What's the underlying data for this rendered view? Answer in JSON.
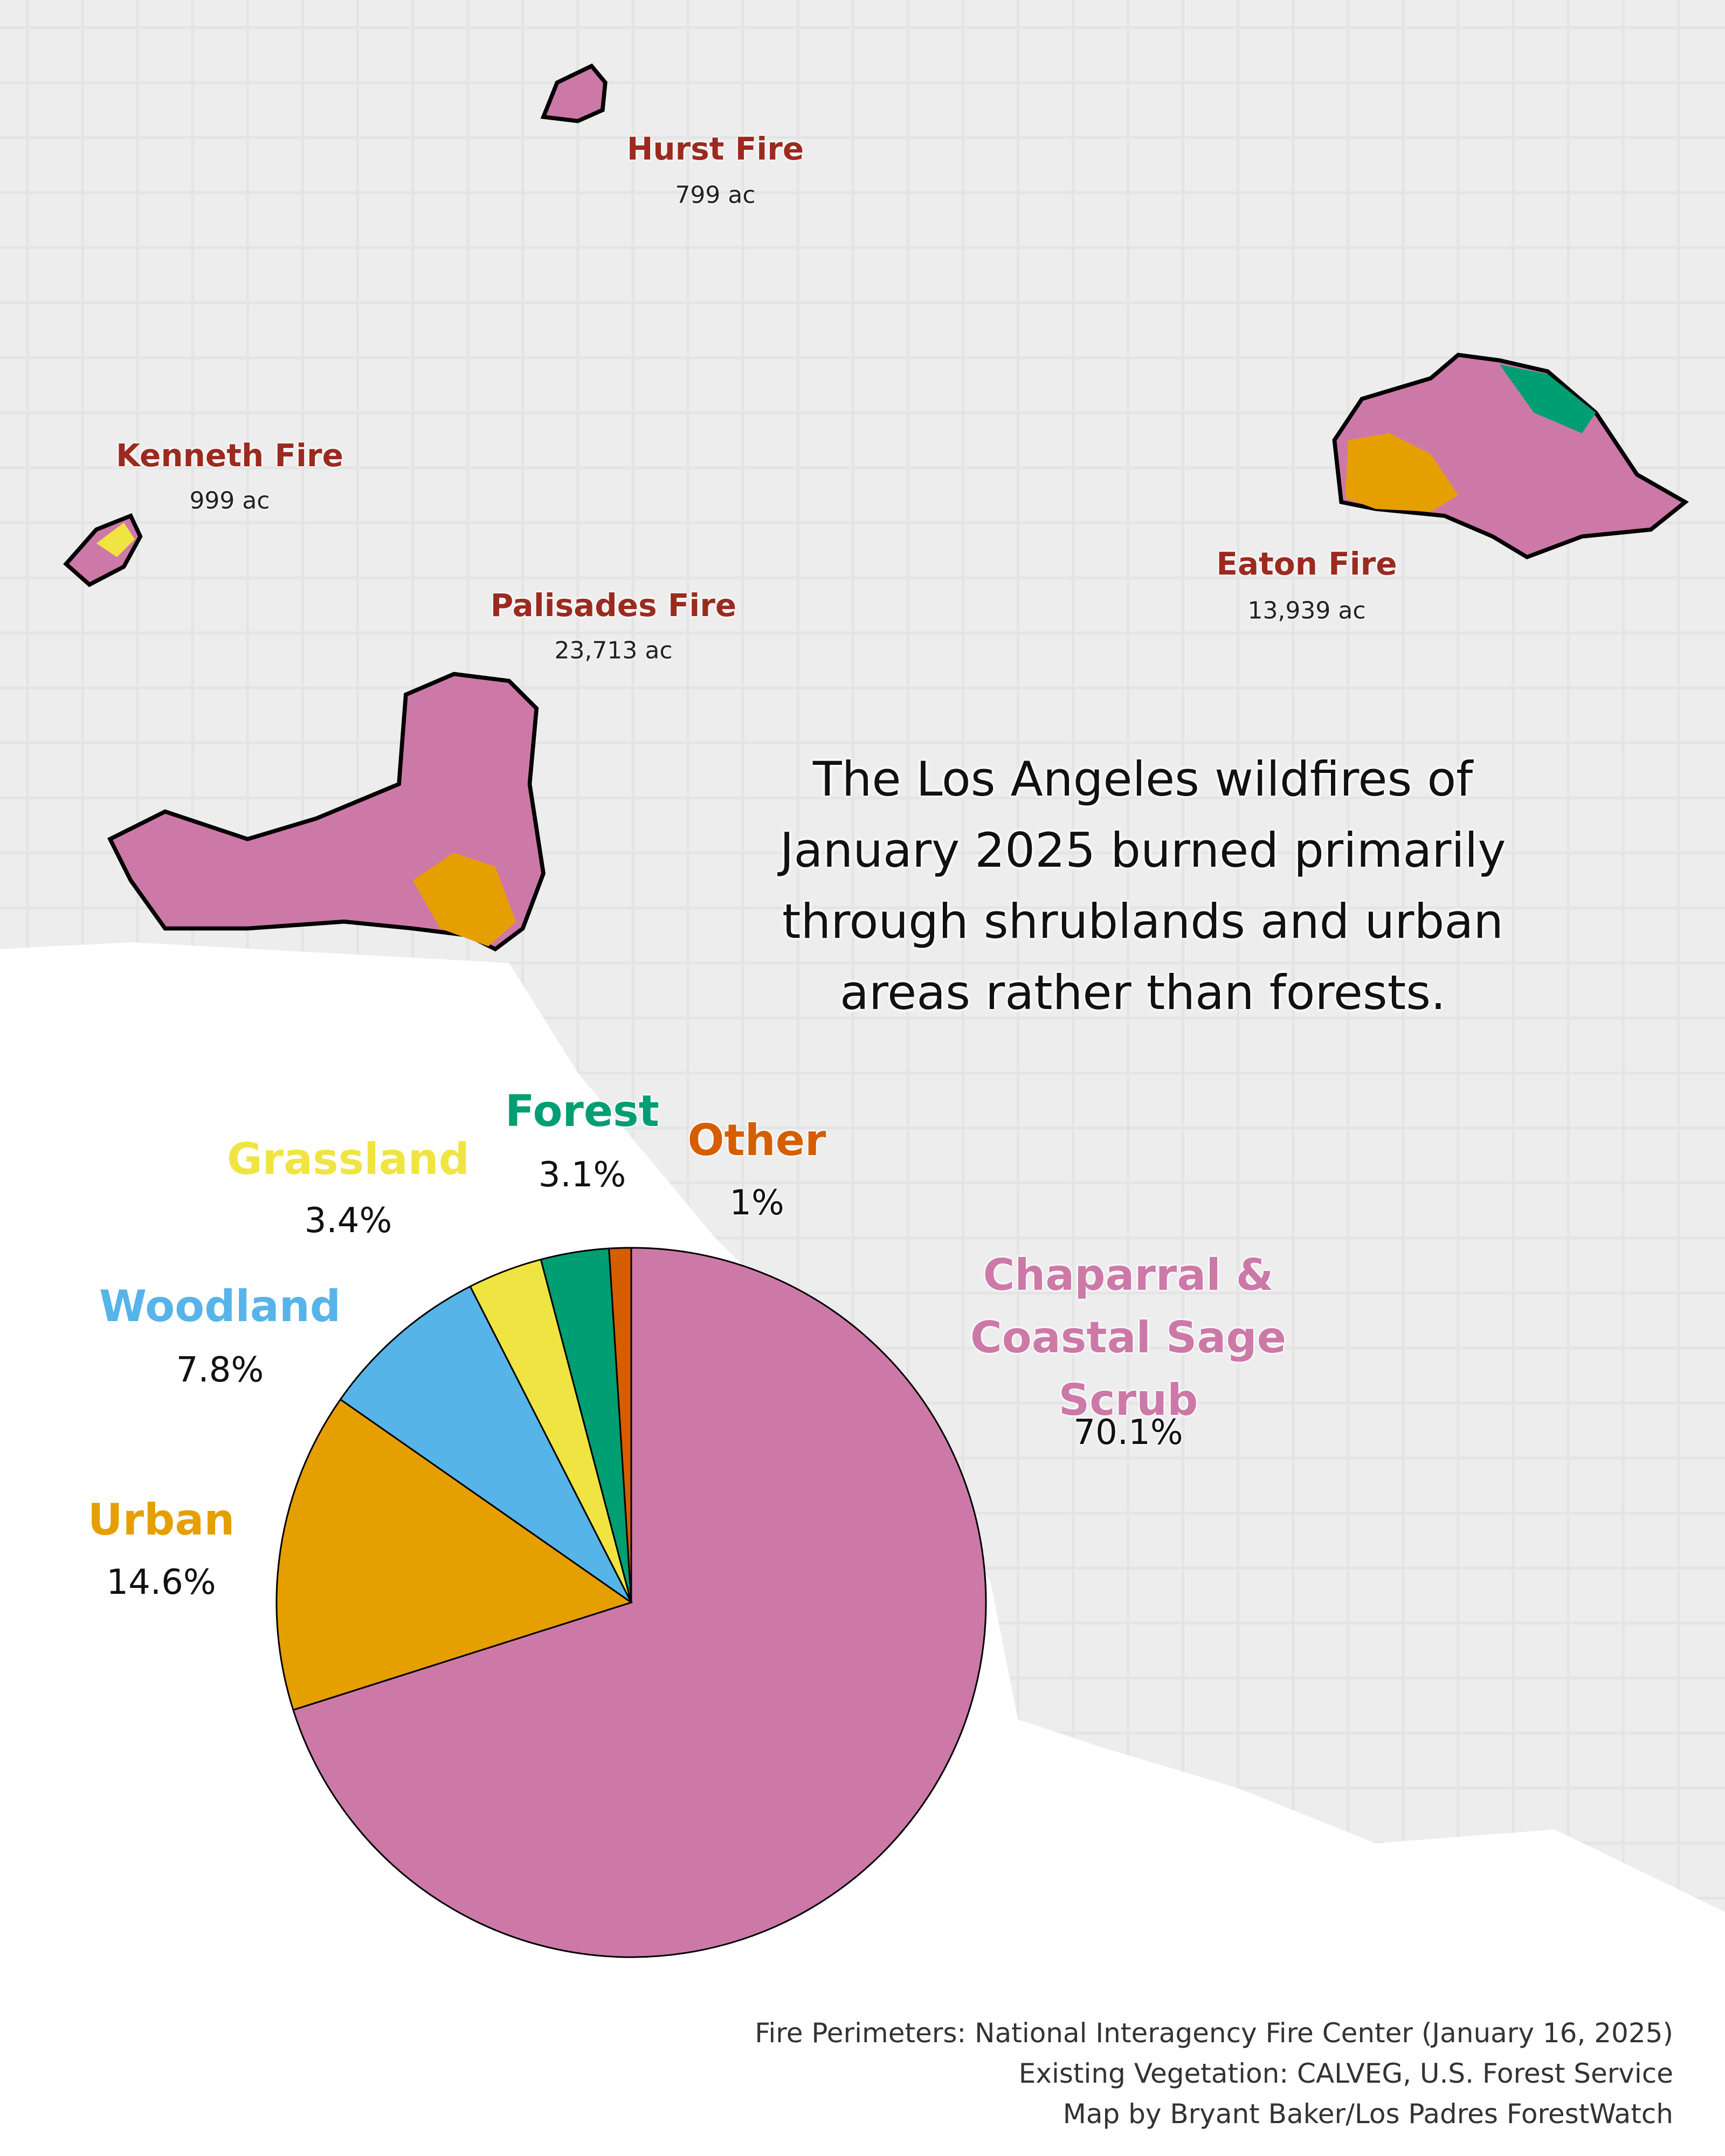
{
  "chart_data": {
    "type": "pie",
    "title": "The Los Angeles wildfires of January 2025 burned primarily through shrublands and urban areas rather than forests.",
    "categories": [
      "Chaparral & Coastal Sage Scrub",
      "Urban",
      "Woodland",
      "Grassland",
      "Forest",
      "Other"
    ],
    "values": [
      70.1,
      14.6,
      7.8,
      3.4,
      3.1,
      1
    ],
    "value_labels": [
      "70.1%",
      "14.6%",
      "7.8%",
      "3.4%",
      "3.1%",
      "1%"
    ],
    "colors": [
      "#cd79a8",
      "#e69f00",
      "#56b4e9",
      "#f0e442",
      "#009e73",
      "#d55e00"
    ]
  },
  "fires": [
    {
      "name": "Hurst Fire",
      "area": "799 ac"
    },
    {
      "name": "Kenneth Fire",
      "area": "999 ac"
    },
    {
      "name": "Palisades Fire",
      "area": "23,713 ac"
    },
    {
      "name": "Eaton Fire",
      "area": "13,939 ac"
    }
  ],
  "sources": [
    "Fire Perimeters: National Interagency Fire Center (January 16, 2025)",
    "Existing Vegetation: CALVEG, U.S. Forest Service",
    "Map by Bryant Baker/Los Padres ForestWatch"
  ]
}
